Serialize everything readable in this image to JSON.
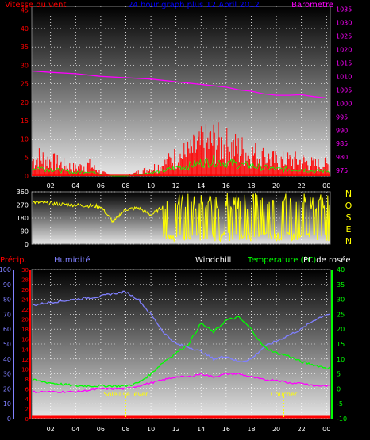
{
  "header": {
    "wind_label": "Vitesse du vent",
    "title": "24 hour graph plus  12 April 2012",
    "baro_label": "Barometre"
  },
  "bottom_header": {
    "precip_label": "Précip.",
    "humidity_label": "Humidité",
    "windchill_label": "Windchill",
    "temp_label": "Temperature (°C)",
    "dew_label": "Pt. de rosée"
  },
  "annotations": {
    "sunrise": "Soleil se lever",
    "sunset": "Coucher"
  },
  "compass": [
    "N",
    "O",
    "S",
    "E",
    "N"
  ],
  "colors": {
    "wind": "#ff0000",
    "gust": "#ff0000",
    "baro": "#ff00ff",
    "title": "#0000ff",
    "direction": "#ffff00",
    "humidity": "#8080ff",
    "temperature": "#00ff00",
    "dew": "#ff00ff",
    "sun": "#ffff00"
  },
  "chart_data": [
    {
      "type": "line",
      "name": "wind_baro",
      "x_ticks": [
        "02",
        "04",
        "06",
        "08",
        "10",
        "12",
        "14",
        "16",
        "18",
        "20",
        "22",
        "00"
      ],
      "y_left_ticks": [
        0,
        5,
        10,
        15,
        20,
        25,
        30,
        35,
        40,
        45
      ],
      "y_right_ticks": [
        975,
        980,
        985,
        990,
        995,
        1000,
        1005,
        1010,
        1015,
        1020,
        1025,
        1030,
        1035
      ],
      "ylim_left": [
        0,
        46
      ],
      "ylim_right": [
        973,
        1036
      ],
      "xlim": [
        0.5,
        24.3
      ],
      "series": [
        {
          "name": "Barometre",
          "axis": "right",
          "x": [
            0.5,
            2,
            4,
            6,
            8,
            10,
            12,
            13,
            14,
            15,
            16,
            17,
            18,
            19,
            20,
            21,
            22,
            23,
            24
          ],
          "values": [
            1012,
            1011.5,
            1011,
            1010,
            1009.5,
            1009,
            1008,
            1007.5,
            1007,
            1006.5,
            1006,
            1005,
            1004.5,
            1003.5,
            1003,
            1003,
            1003.2,
            1002.5,
            1002
          ]
        },
        {
          "name": "Vitesse du vent",
          "axis": "left",
          "x": [
            0.5,
            1,
            2,
            3,
            4,
            5,
            6,
            7,
            8,
            9,
            10,
            11,
            12,
            13,
            14,
            15,
            16,
            17,
            18,
            19,
            20,
            21,
            22,
            23,
            24
          ],
          "values": [
            4,
            5,
            4,
            3,
            2,
            3,
            1,
            0,
            0,
            1,
            2,
            3,
            5,
            6,
            8,
            9,
            8,
            7,
            6,
            5,
            4,
            4,
            4,
            3,
            3
          ]
        }
      ]
    },
    {
      "type": "line",
      "name": "wind_direction",
      "x_ticks": [
        "02",
        "04",
        "06",
        "08",
        "10",
        "12",
        "14",
        "16",
        "18",
        "20",
        "22",
        "00"
      ],
      "y_ticks": [
        0,
        90,
        180,
        270,
        360
      ],
      "ylim": [
        0,
        360
      ],
      "series": [
        {
          "name": "Direction",
          "x": [
            0.5,
            2,
            4,
            6,
            7,
            7.5,
            8,
            9,
            10,
            11,
            12,
            14,
            16,
            18,
            20,
            22,
            24
          ],
          "values": [
            290,
            280,
            270,
            260,
            150,
            200,
            240,
            250,
            200,
            260,
            270,
            260,
            260,
            260,
            260,
            260,
            260
          ]
        }
      ]
    },
    {
      "type": "line",
      "name": "temp_hum",
      "x_ticks": [
        "02",
        "04",
        "06",
        "08",
        "10",
        "12",
        "14",
        "16",
        "18",
        "20",
        "22",
        "00"
      ],
      "y_humidity_ticks": [
        0,
        10,
        20,
        30,
        40,
        50,
        60,
        70,
        80,
        90,
        100
      ],
      "y_precip_ticks": [
        0,
        2,
        4,
        6,
        8,
        10,
        12,
        14,
        16,
        18,
        20,
        22,
        24,
        26,
        28,
        30
      ],
      "y_temp_ticks": [
        -10,
        -5,
        0,
        5,
        10,
        15,
        20,
        25,
        30,
        35,
        40
      ],
      "series": [
        {
          "name": "Humidité",
          "axis": "humidity",
          "x": [
            0.5,
            2,
            4,
            6,
            7,
            8,
            9,
            10,
            11,
            12,
            13,
            14,
            15,
            16,
            17,
            18,
            19,
            20,
            21,
            22,
            23,
            24
          ],
          "values": [
            76,
            78,
            80,
            82,
            84,
            85,
            80,
            70,
            58,
            50,
            48,
            45,
            40,
            42,
            38,
            40,
            48,
            52,
            56,
            60,
            66,
            70
          ]
        },
        {
          "name": "Temperature (°C)",
          "axis": "temp",
          "x": [
            0.5,
            2,
            4,
            6,
            7,
            8,
            9,
            10,
            11,
            12,
            13,
            14,
            15,
            16,
            17,
            18,
            19,
            20,
            21,
            22,
            23,
            24
          ],
          "values": [
            3,
            2,
            1,
            1,
            1,
            1,
            2,
            5,
            9,
            12,
            15,
            22,
            19,
            23,
            24,
            20,
            14,
            12,
            11,
            9,
            8,
            7
          ]
        },
        {
          "name": "Pt. de rosée",
          "axis": "temp",
          "x": [
            0.5,
            2,
            4,
            6,
            7,
            8,
            9,
            10,
            11,
            12,
            13,
            14,
            15,
            16,
            17,
            18,
            19,
            20,
            21,
            22,
            23,
            24
          ],
          "values": [
            -1,
            -1,
            -1,
            0,
            0,
            0,
            1,
            2,
            3,
            4,
            4,
            5,
            4,
            5,
            5,
            4,
            3,
            3,
            2,
            2,
            1,
            1
          ]
        },
        {
          "name": "Précip.",
          "axis": "precip",
          "x": [
            0.5,
            24
          ],
          "values": [
            0,
            0
          ]
        }
      ]
    }
  ]
}
